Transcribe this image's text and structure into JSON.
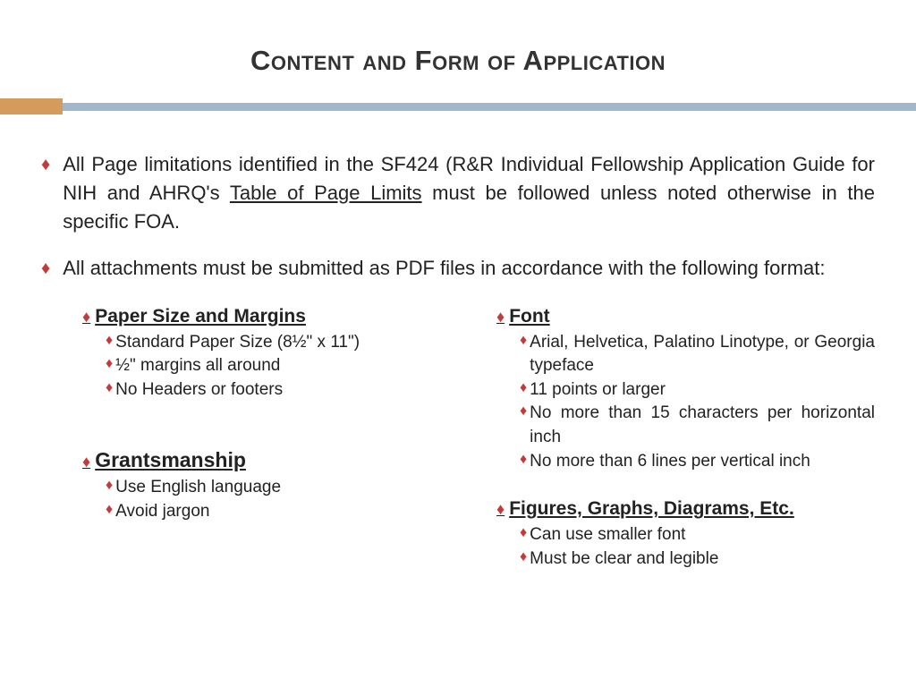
{
  "title": "Content and Form of Application",
  "colors": {
    "diamond": "#c43a3a",
    "divider_orange": "#d59b5c",
    "divider_blue": "#a0b8ca",
    "text": "#222222",
    "background": "#ffffff"
  },
  "mainBullets": [
    {
      "pre": "All Page limitations identified in the SF424 (R&R Individual Fellowship Application Guide for NIH and AHRQ's ",
      "link": "Table of Page Limits",
      "post": " must be followed unless noted otherwise in the specific FOA."
    },
    {
      "pre": "All attachments must be submitted as PDF files in accordance with the following format:",
      "link": "",
      "post": ""
    }
  ],
  "leftSections": [
    {
      "heading": "Paper Size and Margins",
      "items": [
        "Standard Paper Size (8½\" x 11\")",
        "½\" margins all around",
        "No Headers or footers"
      ]
    },
    {
      "heading": "Grantsmanship",
      "items": [
        "Use English language",
        "Avoid jargon"
      ]
    }
  ],
  "rightSections": [
    {
      "heading": "Font",
      "items": [
        "Arial, Helvetica, Palatino Linotype, or Georgia typeface",
        "11 points or larger",
        "No more than 15 characters per horizontal inch",
        "No more than 6 lines per vertical inch"
      ]
    },
    {
      "heading": "Figures, Graphs, Diagrams, Etc.",
      "items": [
        "Can use smaller font",
        "Must be clear and legible"
      ]
    }
  ]
}
